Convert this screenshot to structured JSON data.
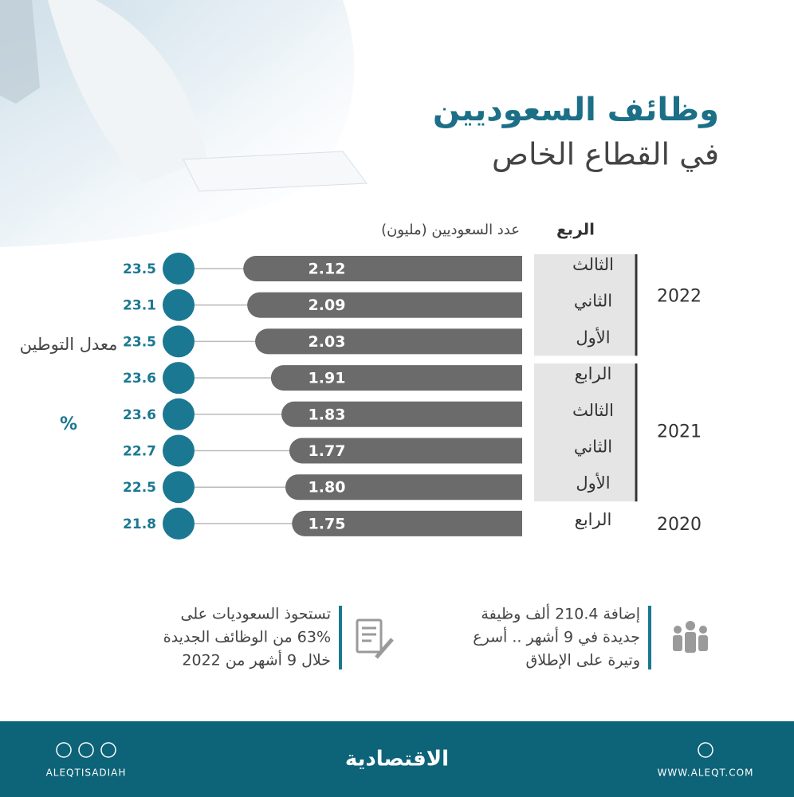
{
  "chart_data": {
    "type": "bar",
    "title": "وظائف السعوديين",
    "subtitle": "في القطاع الخاص",
    "quarter_header": "الربع",
    "value_header": "عدد السعوديين (مليون)",
    "rate_header": "معدل التوطين",
    "rate_unit": "%",
    "categories": [
      "الثالث",
      "الثاني",
      "الأول",
      "الرابع",
      "الثالث",
      "الثاني",
      "الأول",
      "الرابع"
    ],
    "groups": [
      "2022",
      "2021",
      "2020"
    ],
    "values": [
      2.12,
      2.09,
      2.03,
      1.91,
      1.83,
      1.77,
      1.8,
      1.75
    ],
    "value_labels": [
      "2.12",
      "2.09",
      "2.03",
      "1.91",
      "1.83",
      "1.77",
      "1.80",
      "1.75"
    ],
    "rates": [
      23.5,
      23.1,
      23.5,
      23.6,
      23.6,
      22.7,
      22.5,
      21.8
    ],
    "color": "#6b6b6b",
    "rate_color": "#1b7892"
  },
  "notes": [
    {
      "lines": [
        "إضافة 210.4 ألف وظيفة",
        "جديدة في 9 أشهر .. أسرع",
        "وتيرة على الإطلاق"
      ]
    },
    {
      "lines": [
        "تستحوذ السعوديات على",
        "63% من الوظائف الجديدة",
        "خلال 9 أشهر من 2022"
      ]
    }
  ],
  "footer": {
    "left": "ALEQTISADIAH",
    "logo": "الاقتصادية",
    "right": "WWW.ALEQT.COM"
  }
}
